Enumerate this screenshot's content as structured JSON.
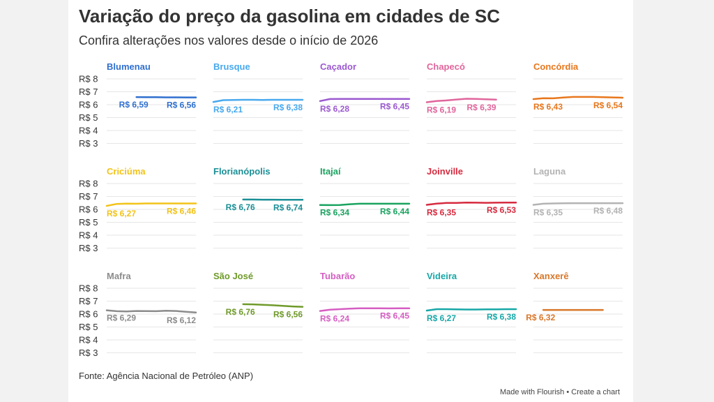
{
  "header": {
    "title": "Variação do preço da gasolina em cidades de SC",
    "subtitle": "Confira alterações nos valores desde o início de 2026"
  },
  "footer": {
    "source": "Fonte: Agência Nacional de Petróleo (ANP)",
    "made_with": "Made with Flourish",
    "separator": "•",
    "create_link": "Create a chart"
  },
  "chart_data": {
    "type": "line",
    "layout": "small-multiples",
    "y_tick_labels": [
      "R$ 8",
      "R$ 7",
      "R$ 6",
      "R$ 5",
      "R$ 4",
      "R$ 3"
    ],
    "ylim": [
      3,
      8
    ],
    "grid": true,
    "panels": [
      {
        "name": "Blumenau",
        "color": "#2f6fce",
        "first_label": "R$ 6,59",
        "last_label": "R$ 6,56",
        "values": [
          null,
          null,
          null,
          6.59,
          6.58,
          6.58,
          6.57,
          6.57,
          6.56,
          6.56
        ],
        "show_y_axis": true
      },
      {
        "name": "Brusque",
        "color": "#48a9ee",
        "first_label": "R$ 6,21",
        "last_label": "R$ 6,38",
        "values": [
          6.21,
          6.35,
          6.37,
          6.38,
          6.38,
          6.37,
          6.38,
          6.38,
          6.38,
          6.38
        ]
      },
      {
        "name": "Caçador",
        "color": "#9b59d0",
        "first_label": "R$ 6,28",
        "last_label": "R$ 6,45",
        "values": [
          6.28,
          6.44,
          6.45,
          6.45,
          6.45,
          6.45,
          6.45,
          6.45,
          6.45,
          6.45
        ]
      },
      {
        "name": "Chapecó",
        "color": "#e0669c",
        "first_label": "R$ 6,19",
        "last_label": "R$ 6,39",
        "values": [
          6.19,
          6.28,
          6.33,
          6.4,
          6.46,
          6.45,
          6.42,
          6.39,
          null,
          null
        ]
      },
      {
        "name": "Concórdia",
        "color": "#e8771c",
        "first_label": "R$ 6,43",
        "last_label": "R$ 6,54",
        "values": [
          6.43,
          6.5,
          6.49,
          6.55,
          6.6,
          6.6,
          6.6,
          6.58,
          6.56,
          6.54
        ]
      },
      {
        "name": "Criciúma",
        "color": "#f2c319",
        "first_label": "R$ 6,27",
        "last_label": "R$ 6,46",
        "values": [
          6.27,
          6.42,
          6.45,
          6.44,
          6.46,
          6.46,
          6.46,
          6.46,
          6.46,
          6.46
        ],
        "show_y_axis": true
      },
      {
        "name": "Florianópolis",
        "color": "#1a8f96",
        "first_label": "R$ 6,76",
        "last_label": "R$ 6,74",
        "values": [
          null,
          null,
          null,
          6.76,
          6.76,
          6.75,
          6.75,
          6.74,
          6.74,
          6.74
        ]
      },
      {
        "name": "Itajaí",
        "color": "#19a35f",
        "first_label": "R$ 6,34",
        "last_label": "R$ 6,44",
        "values": [
          6.34,
          6.33,
          6.34,
          6.4,
          6.44,
          6.44,
          6.44,
          6.44,
          6.44,
          6.44
        ]
      },
      {
        "name": "Joinville",
        "color": "#d62b3f",
        "first_label": "R$ 6,35",
        "last_label": "R$ 6,53",
        "values": [
          6.35,
          6.45,
          6.5,
          6.5,
          6.53,
          6.52,
          6.51,
          6.52,
          6.53,
          6.53
        ]
      },
      {
        "name": "Laguna",
        "color": "#b3b3b3",
        "first_label": "R$ 6,35",
        "last_label": "R$ 6,48",
        "values": [
          6.35,
          6.44,
          6.46,
          6.47,
          6.48,
          6.48,
          6.48,
          6.48,
          6.48,
          6.48
        ]
      },
      {
        "name": "Mafra",
        "color": "#8c8c8c",
        "first_label": "R$ 6,29",
        "last_label": "R$ 6,12",
        "values": [
          6.29,
          6.22,
          6.2,
          6.24,
          6.23,
          6.22,
          6.26,
          6.24,
          6.18,
          6.12
        ],
        "show_y_axis": true
      },
      {
        "name": "São José",
        "color": "#6f9a2a",
        "first_label": "R$ 6,76",
        "last_label": "R$ 6,56",
        "values": [
          null,
          null,
          null,
          6.76,
          6.75,
          6.72,
          6.68,
          6.63,
          6.59,
          6.56
        ]
      },
      {
        "name": "Tubarão",
        "color": "#d55ec2",
        "first_label": "R$ 6,24",
        "last_label": "R$ 6,45",
        "values": [
          6.24,
          6.34,
          6.38,
          6.42,
          6.45,
          6.45,
          6.45,
          6.44,
          6.45,
          6.45
        ]
      },
      {
        "name": "Videira",
        "color": "#17a7a7",
        "first_label": "R$ 6,27",
        "last_label": "R$ 6,38",
        "values": [
          6.27,
          6.38,
          6.38,
          6.36,
          6.35,
          6.35,
          6.37,
          6.37,
          6.38,
          6.38
        ]
      },
      {
        "name": "Xanxerê",
        "color": "#d9772a",
        "first_label": "R$ 6,32",
        "last_label": "",
        "values": [
          null,
          6.32,
          6.32,
          6.32,
          6.32,
          6.32,
          6.32,
          6.32,
          null,
          null
        ]
      }
    ]
  }
}
